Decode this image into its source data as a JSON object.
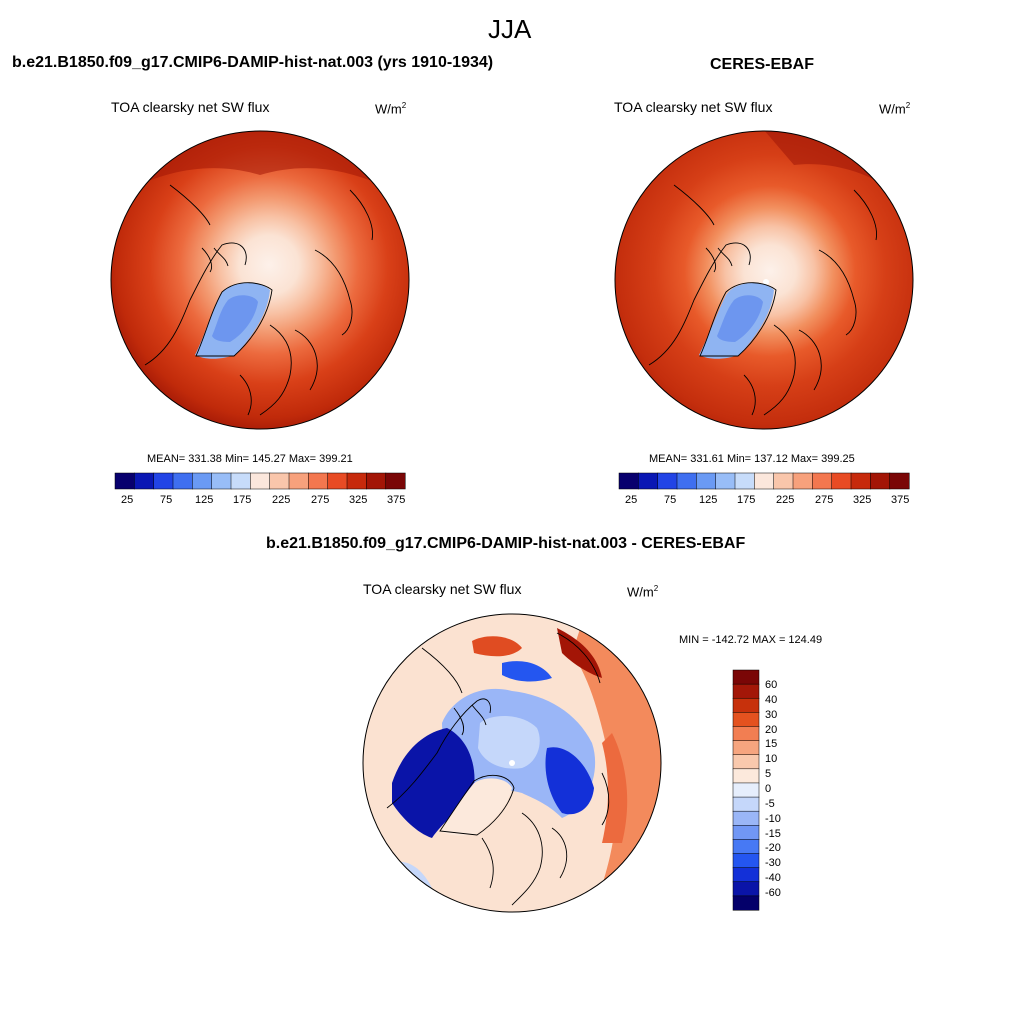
{
  "header": {
    "season": "JJA"
  },
  "colors": {
    "abs_palette": [
      "#08006e",
      "#0a17b4",
      "#2244e6",
      "#3f6ff0",
      "#6a9af4",
      "#98bdf7",
      "#c7dcfa",
      "#fbe7dc",
      "#f9c6ab",
      "#f7a17c",
      "#f3774f",
      "#e84b24",
      "#c72a0c",
      "#a31506",
      "#7a0606"
    ],
    "diff_palette": [
      "#04006a",
      "#0a14a8",
      "#1330d8",
      "#2456f0",
      "#4779f4",
      "#7197f5",
      "#9ab6f7",
      "#c5d7fa",
      "#e6eefc",
      "#fce9dc",
      "#f9c9ad",
      "#f6a57f",
      "#f27e52",
      "#e4521f",
      "#c7310c",
      "#a31708",
      "#7a0606"
    ]
  },
  "panel_model": {
    "case_title": "b.e21.B1850.f09_g17.CMIP6-DAMIP-hist-nat.003 (yrs 1910-1934)",
    "variable": "TOA clearsky net SW flux",
    "units_base": "W/m",
    "units_exp": "2",
    "stats": "MEAN= 331.38  Min= 145.27  Max= 399.21",
    "colorbar_labels": [
      "25",
      "75",
      "125",
      "175",
      "225",
      "275",
      "325",
      "375"
    ]
  },
  "panel_obs": {
    "case_title": "CERES-EBAF",
    "variable": "TOA clearsky net SW flux",
    "units_base": "W/m",
    "units_exp": "2",
    "stats": "MEAN= 331.61  Min= 137.12  Max= 399.25",
    "colorbar_labels": [
      "25",
      "75",
      "125",
      "175",
      "225",
      "275",
      "325",
      "375"
    ]
  },
  "panel_diff": {
    "case_title": "b.e21.B1850.f09_g17.CMIP6-DAMIP-hist-nat.003 - CERES-EBAF",
    "variable": "TOA clearsky net SW flux",
    "units_base": "W/m",
    "units_exp": "2",
    "stats": "MIN = -142.72 MAX = 124.49",
    "colorbar_labels": [
      "60",
      "40",
      "30",
      "20",
      "15",
      "10",
      "5",
      "0",
      "-5",
      "-10",
      "-15",
      "-20",
      "-30",
      "-40",
      "-60"
    ]
  }
}
